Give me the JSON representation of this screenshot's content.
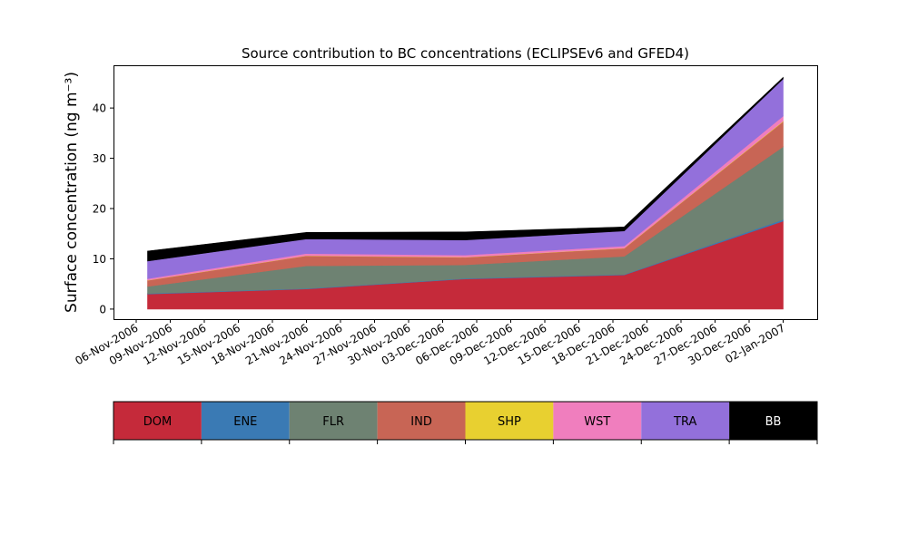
{
  "chart_data": {
    "type": "area",
    "title": "Source contribution to BC concentrations (ECLIPSEv6 and GFED4)",
    "ylabel": "Surface concentration (ng m⁻³)",
    "xlabel": "",
    "ylim": [
      -2,
      48.5
    ],
    "xlim": [
      "2006-11-04",
      "2007-01-05"
    ],
    "yticks": [
      0,
      10,
      20,
      30,
      40
    ],
    "xticks": [
      "06-Nov-2006",
      "09-Nov-2006",
      "12-Nov-2006",
      "15-Nov-2006",
      "18-Nov-2006",
      "21-Nov-2006",
      "24-Nov-2006",
      "27-Nov-2006",
      "30-Nov-2006",
      "03-Dec-2006",
      "06-Dec-2006",
      "09-Dec-2006",
      "12-Dec-2006",
      "15-Dec-2006",
      "18-Dec-2006",
      "21-Dec-2006",
      "24-Dec-2006",
      "27-Dec-2006",
      "30-Dec-2006",
      "02-Jan-2007"
    ],
    "x": [
      "2006-11-07",
      "2006-11-21",
      "2006-12-05",
      "2006-12-19",
      "2007-01-02"
    ],
    "stacked": true,
    "series": [
      {
        "name": "DOM",
        "color": "#c52a3a",
        "values": [
          3.0,
          4.0,
          6.0,
          6.8,
          17.5
        ]
      },
      {
        "name": "ENE",
        "color": "#3a7ab4",
        "values": [
          0.1,
          0.1,
          0.1,
          0.1,
          0.3
        ]
      },
      {
        "name": "FLR",
        "color": "#6e8272",
        "values": [
          1.4,
          4.5,
          2.7,
          3.6,
          14.5
        ]
      },
      {
        "name": "IND",
        "color": "#c86555",
        "values": [
          1.2,
          2.0,
          1.5,
          1.6,
          5.0
        ]
      },
      {
        "name": "SHP",
        "color": "#e8d030",
        "values": [
          0.05,
          0.05,
          0.05,
          0.05,
          0.1
        ]
      },
      {
        "name": "WST",
        "color": "#f07ebe",
        "values": [
          0.3,
          0.4,
          0.4,
          0.4,
          1.0
        ]
      },
      {
        "name": "TRA",
        "color": "#9370db",
        "values": [
          3.5,
          2.9,
          3.0,
          3.0,
          7.4
        ]
      },
      {
        "name": "BB",
        "color": "#000000",
        "values": [
          2.0,
          1.3,
          1.6,
          0.8,
          0.3
        ]
      }
    ],
    "legend": {
      "placement": "bottom",
      "entries": [
        {
          "label": "DOM",
          "color": "#c52a3a",
          "text_color": "#000000"
        },
        {
          "label": "ENE",
          "color": "#3a7ab4",
          "text_color": "#000000"
        },
        {
          "label": "FLR",
          "color": "#6e8272",
          "text_color": "#000000"
        },
        {
          "label": "IND",
          "color": "#c86555",
          "text_color": "#000000"
        },
        {
          "label": "SHP",
          "color": "#e8d030",
          "text_color": "#000000"
        },
        {
          "label": "WST",
          "color": "#f07ebe",
          "text_color": "#000000"
        },
        {
          "label": "TRA",
          "color": "#9370db",
          "text_color": "#000000"
        },
        {
          "label": "BB",
          "color": "#000000",
          "text_color": "#ffffff"
        }
      ]
    },
    "grid": false
  }
}
